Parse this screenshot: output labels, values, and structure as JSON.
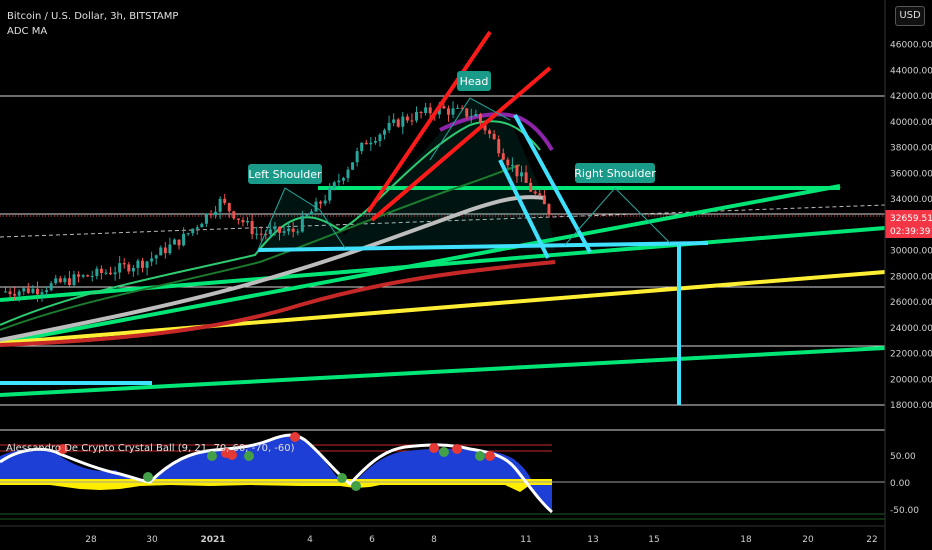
{
  "header": {
    "symbol_line": "Bitcoin / U.S. Dollar, 3h, BITSTAMP",
    "indicator_label": "ADC MA"
  },
  "currency_button": "USD",
  "price_axis": {
    "ticks": [
      46000,
      44000,
      42000,
      40000,
      38000,
      36000,
      34000,
      30000,
      28000,
      26000,
      24000,
      22000,
      20000,
      18000
    ],
    "tick_labels": [
      "46000.00",
      "44000.00",
      "42000.00",
      "40000.00",
      "38000.00",
      "36000.00",
      "34000.00",
      "30000.00",
      "28000.00",
      "26000.00",
      "24000.00",
      "22000.00",
      "20000.00",
      "18000.00"
    ],
    "current_price": "32659.51",
    "countdown": "02:39:39",
    "current_price_color": "#f23645"
  },
  "time_axis": {
    "labels": [
      "28",
      "30",
      "2021",
      "4",
      "6",
      "8",
      "11",
      "13",
      "15",
      "18",
      "20",
      "22"
    ]
  },
  "annotations": {
    "head": "Head",
    "left_shoulder": "Left Shoulder",
    "right_shoulder": "Right Shoulder"
  },
  "oscillator": {
    "label": "Alessandro De Crypto Crystal Ball (9, 21, 70, 60, -70, -60)",
    "tick_labels": [
      "50.00",
      "0.00",
      "-50.00"
    ],
    "ticks": [
      50,
      0,
      -50
    ]
  },
  "chart_data": {
    "type": "candlestick",
    "title": "Bitcoin / U.S. Dollar, 3h, BITSTAMP",
    "ylim": [
      17500,
      48500
    ],
    "horizontal_levels": [
      42000,
      33100,
      27400,
      23000,
      18500
    ],
    "colors": {
      "up": "#26a69a",
      "down": "#ef5350",
      "neckline": "#00e5ff",
      "trend": "#00ff00",
      "resistance": "#ff0000",
      "support": "#ffff00"
    },
    "series": [
      {
        "name": "price",
        "x": [
          "28",
          "29",
          "30",
          "31",
          "2021",
          "2",
          "3",
          "4",
          "5",
          "6",
          "7",
          "8",
          "9",
          "10",
          "11",
          "11.5"
        ],
        "y": [
          26800,
          27000,
          27800,
          28400,
          29200,
          31000,
          33800,
          31300,
          31500,
          34500,
          38500,
          40200,
          41000,
          40500,
          36500,
          33000
        ]
      }
    ]
  }
}
